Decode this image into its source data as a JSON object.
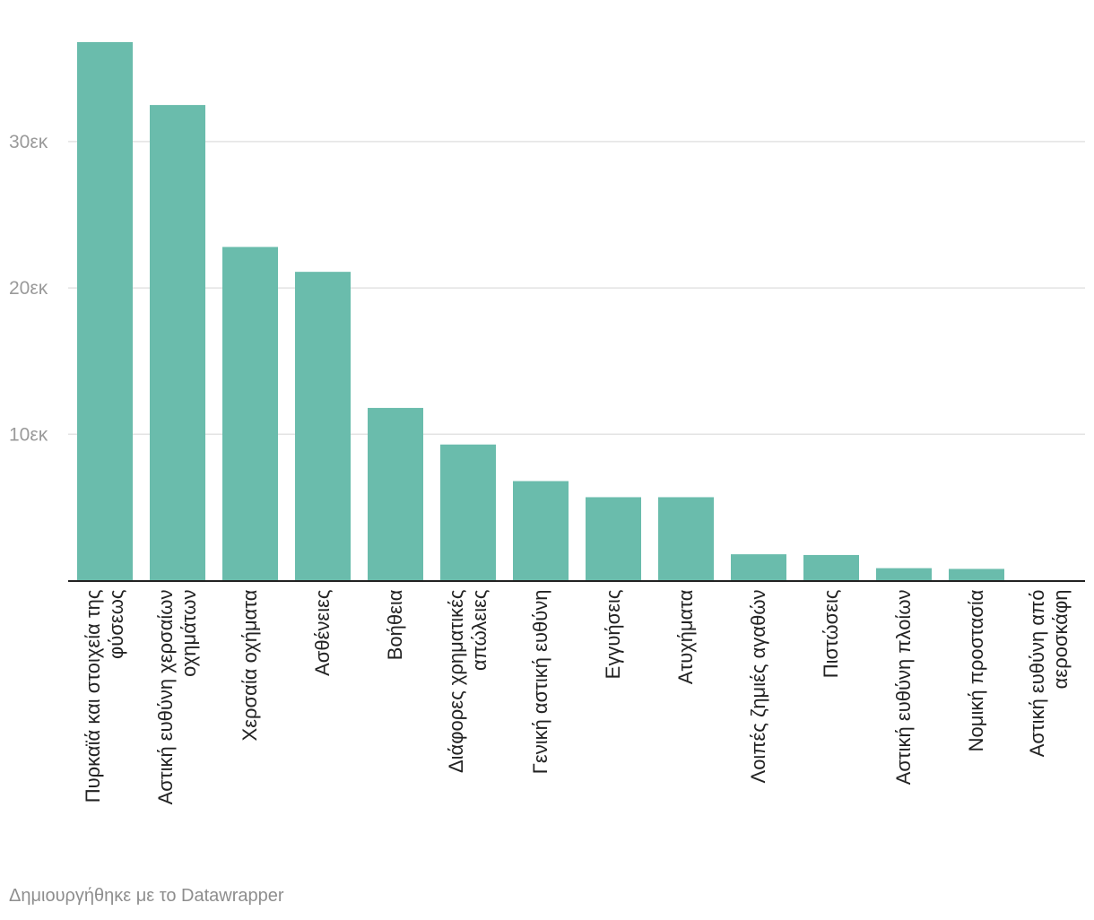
{
  "chart_data": {
    "type": "bar",
    "title": "",
    "xlabel": "",
    "ylabel": "",
    "ylim": [
      0,
      37000
    ],
    "grid": true,
    "y_ticks": [
      {
        "value": 10000,
        "label": "10εκ"
      },
      {
        "value": 20000,
        "label": "20εκ"
      },
      {
        "value": 30000,
        "label": "30εκ"
      }
    ],
    "bar_color": "#6abcac",
    "categories": [
      [
        "Πυρκαϊά και στοιχεία της",
        "φύσεως"
      ],
      [
        "Αστική ευθύνη χερσαίων",
        "οχημάτων"
      ],
      [
        "Χερσαία οχήματα"
      ],
      [
        "Ασθένειες"
      ],
      [
        "Βοήθεια"
      ],
      [
        "Διάφορες χρηματικές",
        "απώλειες"
      ],
      [
        "Γενική αστική ευθύνη"
      ],
      [
        "Εγγυήσεις"
      ],
      [
        "Ατυχήματα"
      ],
      [
        "Λοιπές ζημιές αγαθών"
      ],
      [
        "Πιστώσεις"
      ],
      [
        "Αστική ευθύνη πλοίων"
      ],
      [
        "Νομική προστασία"
      ],
      [
        "Αστική ευθύνη από",
        "αεροσκάφη"
      ]
    ],
    "values": [
      36800,
      32500,
      22800,
      21100,
      11800,
      9300,
      6800,
      5700,
      5700,
      1800,
      1750,
      850,
      800,
      30
    ]
  },
  "footer": {
    "credit": "Δημιουργήθηκε με το Datawrapper"
  }
}
